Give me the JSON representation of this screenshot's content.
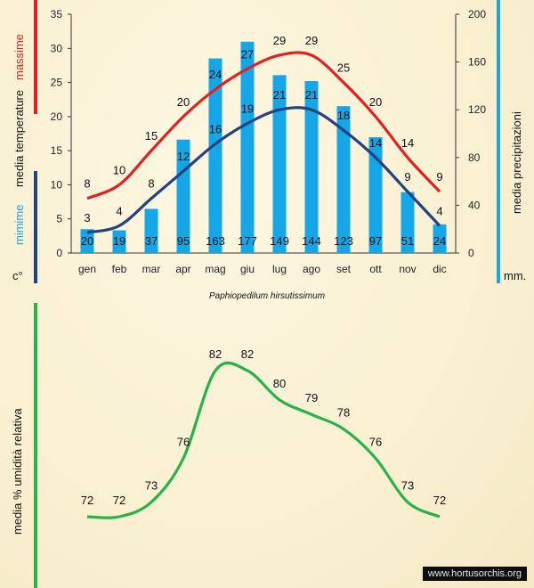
{
  "colors": {
    "max_line": "#e41f1f",
    "min_line": "#23427e",
    "bars": "#14a6e6",
    "humidity_line": "#27b24a",
    "axis_bar_left_top": "#e41f1f",
    "axis_bar_left_bottom": "#23427e",
    "axis_bar_right": "#14a6e6"
  },
  "caption": "Paphiopedilum hirsutissimum",
  "watermark": "www.hortusorchis.org",
  "chart_data": [
    {
      "type": "bar+line",
      "categories": [
        "gen",
        "feb",
        "mar",
        "apr",
        "mag",
        "giu",
        "lug",
        "ago",
        "set",
        "ott",
        "nov",
        "dic"
      ],
      "left_axis": {
        "label_red": "massime",
        "label_black": "media  temperature",
        "label_blue": "mimime",
        "unit": "c°",
        "ylim": [
          0,
          35
        ],
        "ticks": [
          "0",
          "5",
          "10",
          "15",
          "20",
          "25",
          "30",
          "35"
        ]
      },
      "right_axis": {
        "label": "media  precipitazioni",
        "unit": "mm.",
        "ylim": [
          0,
          200
        ],
        "ticks": [
          "0",
          "40",
          "80",
          "120",
          "160",
          "200"
        ]
      },
      "series": [
        {
          "name": "massime",
          "kind": "line",
          "axis": "left",
          "values": [
            8,
            10,
            15,
            20,
            24,
            27,
            29,
            29,
            25,
            20,
            14,
            9
          ]
        },
        {
          "name": "mimime",
          "kind": "line",
          "axis": "left",
          "values": [
            3,
            4,
            8,
            12,
            16,
            19,
            21,
            21,
            18,
            14,
            9,
            4
          ]
        },
        {
          "name": "precipitazioni",
          "kind": "bar",
          "axis": "right",
          "values": [
            20,
            19,
            37,
            95,
            163,
            177,
            149,
            144,
            123,
            97,
            51,
            24
          ]
        }
      ],
      "data_labels": {
        "massime": [
          "8",
          "10",
          "15",
          "20",
          "24",
          "27",
          "29",
          "29",
          "25",
          "20",
          "14",
          "9"
        ],
        "mimime": [
          "3",
          "4",
          "8",
          "12",
          "16",
          "19",
          "21",
          "21",
          "18",
          "14",
          "9",
          "4"
        ],
        "precipitazioni": [
          "20",
          "19",
          "37",
          "95",
          "163",
          "177",
          "149",
          "144",
          "123",
          "97",
          "51",
          "24"
        ]
      }
    },
    {
      "type": "line",
      "ylabel": "media  %  umidità relativa",
      "series": [
        {
          "name": "umidità relativa",
          "values": [
            72,
            72,
            73,
            76,
            82,
            82,
            80,
            79,
            78,
            76,
            73,
            72
          ]
        }
      ],
      "data_labels": [
        "72",
        "72",
        "73",
        "76",
        "82",
        "82",
        "80",
        "79",
        "78",
        "76",
        "73",
        "72"
      ]
    }
  ]
}
